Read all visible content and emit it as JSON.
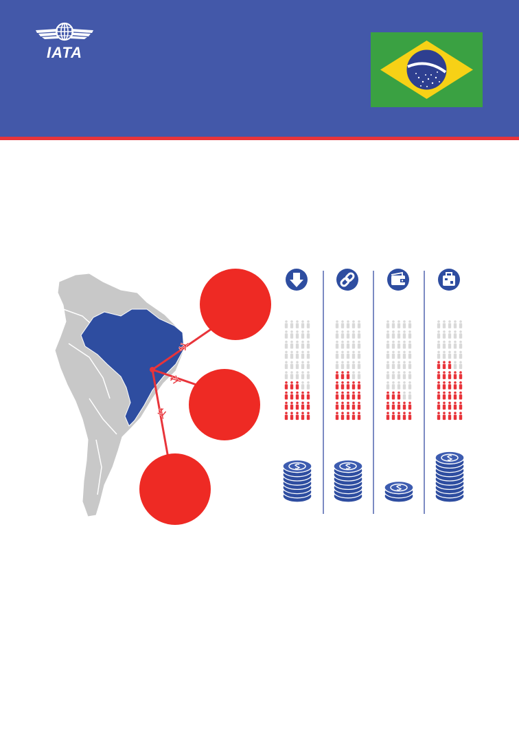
{
  "header": {
    "brand": "IATA",
    "logo_icon": "iata-globe-wings-logo",
    "flag_icon": "brazil-flag-icon",
    "background_color": "#4358a9",
    "stripe_color": "#e8343a"
  },
  "infographic": {
    "map_icon": "south-america-map-brazil-highlighted",
    "highlight_color": "#2e4da0",
    "route_color": "#e8343a",
    "columns": [
      {
        "icon": "down-arrow-icon",
        "filled_people": 7,
        "total_people": 20
      },
      {
        "icon": "chain-link-icon",
        "filled_people": 9,
        "total_people": 20
      },
      {
        "icon": "wallet-icon",
        "filled_people": 5,
        "total_people": 20
      },
      {
        "icon": "suitcase-icon",
        "filled_people": 11,
        "total_people": 20
      }
    ],
    "coin_stacks": [
      {
        "icon": "coin-stack-icon",
        "coins": 8
      },
      {
        "icon": "coin-stack-icon",
        "coins": 8
      },
      {
        "icon": "coin-stack-icon",
        "coins": 3
      },
      {
        "icon": "coin-stack-icon",
        "coins": 10
      }
    ]
  }
}
